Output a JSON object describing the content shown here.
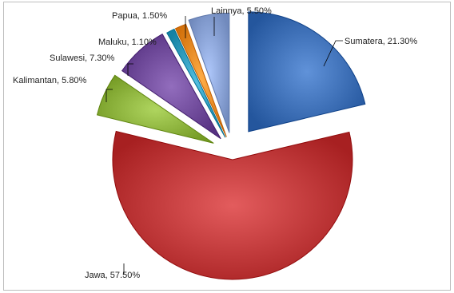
{
  "chart_data": {
    "type": "pie",
    "exploded": true,
    "title": "",
    "slices": [
      {
        "name": "Sumatera",
        "value": 21.3,
        "label": "Sumatera, 21.30%",
        "color": "#3d6fb6"
      },
      {
        "name": "Jawa",
        "value": 57.5,
        "label": "Jawa, 57.50%",
        "color": "#c0393a"
      },
      {
        "name": "Kalimantan",
        "value": 5.8,
        "label": "Kalimantan, 5.80%",
        "color": "#8cb23c"
      },
      {
        "name": "Sulawesi",
        "value": 7.3,
        "label": "Sulawesi, 7.30%",
        "color": "#6f4a9a"
      },
      {
        "name": "Maluku",
        "value": 1.1,
        "label": "Maluku, 1.10%",
        "color": "#2f9bbd"
      },
      {
        "name": "Papua",
        "value": 1.5,
        "label": "Papua, 1.50%",
        "color": "#ec8a24"
      },
      {
        "name": "Lainnya",
        "value": 5.5,
        "label": "Lainnya, 5.50%",
        "color": "#8aa3d6"
      }
    ]
  }
}
